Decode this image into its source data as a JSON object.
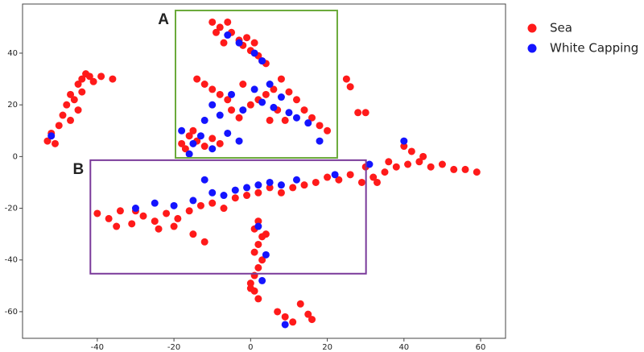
{
  "chart_data": {
    "type": "scatter",
    "xlim": [
      -59.5,
      66.5
    ],
    "ylim": [
      -70.3,
      59
    ],
    "xticks": [
      -40,
      -20,
      0,
      20,
      40,
      60
    ],
    "yticks": [
      -60,
      -40,
      -20,
      0,
      20,
      40
    ],
    "series": [
      {
        "name": "Sea",
        "color": "#ff1a1a",
        "x": [
          -53,
          -52,
          -51,
          -50,
          -49,
          -48,
          -47,
          -46,
          -45,
          -44,
          -45,
          -47,
          -43,
          -44,
          -42,
          -41,
          -39,
          -36,
          -10,
          -8,
          -6,
          -5,
          -3,
          -2,
          0,
          2,
          3,
          -9,
          -1,
          1,
          4,
          -7,
          -14,
          -12,
          -10,
          -8,
          -6,
          -5,
          -3,
          0,
          2,
          4,
          6,
          8,
          10,
          12,
          14,
          16,
          18,
          20,
          7,
          9,
          -2,
          5,
          -18,
          -16,
          -14,
          -12,
          -10,
          -8,
          -15,
          -17,
          25,
          26,
          28,
          30,
          -40,
          -37,
          -34,
          -31,
          -28,
          -25,
          -22,
          -19,
          -16,
          -13,
          -10,
          -7,
          -4,
          -1,
          2,
          5,
          8,
          11,
          14,
          17,
          20,
          23,
          26,
          29,
          32,
          35,
          38,
          41,
          44,
          47,
          50,
          53,
          56,
          59,
          40,
          42,
          36,
          33,
          45,
          -30,
          -35,
          -24,
          -20,
          -15,
          -12,
          30,
          2,
          1,
          3,
          2,
          1,
          3,
          2,
          1,
          0,
          1,
          2,
          0,
          4,
          7,
          9,
          11,
          13,
          15,
          16
        ],
        "y": [
          6,
          9,
          5,
          12,
          16,
          20,
          24,
          22,
          28,
          30,
          18,
          14,
          32,
          25,
          31,
          29,
          31,
          30,
          52,
          50,
          52,
          48,
          45,
          43,
          41,
          39,
          37,
          48,
          46,
          44,
          36,
          44,
          30,
          28,
          26,
          24,
          22,
          18,
          15,
          20,
          22,
          24,
          26,
          30,
          25,
          22,
          18,
          15,
          12,
          10,
          18,
          14,
          28,
          14,
          5,
          8,
          6,
          4,
          7,
          5,
          10,
          3,
          30,
          27,
          17,
          17,
          -22,
          -24,
          -21,
          -26,
          -23,
          -25,
          -22,
          -24,
          -21,
          -19,
          -18,
          -20,
          -16,
          -15,
          -14,
          -12,
          -14,
          -12,
          -11,
          -10,
          -8,
          -9,
          -7,
          -10,
          -8,
          -6,
          -4,
          -3,
          -2,
          -4,
          -3,
          -5,
          -5,
          -6,
          4,
          2,
          -2,
          -10,
          0,
          -21,
          -27,
          -28,
          -27,
          -30,
          -33,
          -4,
          -25,
          -28,
          -31,
          -34,
          -37,
          -40,
          -43,
          -46,
          -49,
          -52,
          -55,
          -51,
          -30,
          -60,
          -62,
          -64,
          -57,
          -61,
          -63
        ]
      },
      {
        "name": "White Capping",
        "color": "#1414ff",
        "x": [
          -52,
          -6,
          -3,
          1,
          3,
          -10,
          -8,
          -5,
          -2,
          1,
          3,
          6,
          8,
          10,
          12,
          15,
          -18,
          -15,
          -13,
          -10,
          -6,
          -3,
          -16,
          5,
          -12,
          18,
          22,
          -30,
          -25,
          -20,
          -15,
          -10,
          -7,
          -4,
          -1,
          2,
          5,
          8,
          -12,
          12,
          2,
          4,
          3,
          9,
          40,
          31
        ],
        "y": [
          8,
          47,
          44,
          40,
          37,
          20,
          16,
          24,
          18,
          26,
          21,
          19,
          23,
          17,
          15,
          13,
          10,
          5,
          8,
          3,
          9,
          6,
          1,
          28,
          14,
          6,
          -7,
          -20,
          -18,
          -19,
          -17,
          -14,
          -15,
          -13,
          -12,
          -11,
          -10,
          -11,
          -9,
          -9,
          -27,
          -38,
          -48,
          -65,
          6,
          -3
        ]
      }
    ],
    "annotations": [
      {
        "label": "A",
        "x": [
          -19.6,
          22.6
        ],
        "y": [
          -0.5,
          56.5
        ],
        "color": "#6aaa3a"
      },
      {
        "label": "B",
        "x": [
          -41.8,
          30.1
        ],
        "y": [
          -45.3,
          -1.4
        ],
        "color": "#7a3a9a"
      }
    ],
    "legend": "outside-right"
  }
}
